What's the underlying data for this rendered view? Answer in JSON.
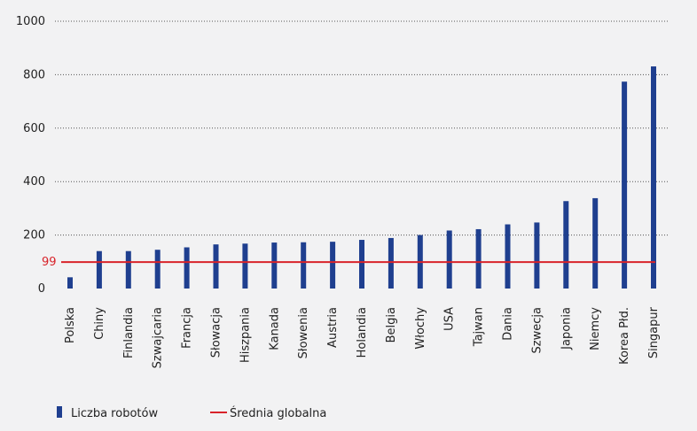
{
  "colors": {
    "background": "#f2f2f3",
    "bar": "#1f3f8f",
    "average_line": "#d8232a",
    "grid": "#555555",
    "axis_text": "#222222"
  },
  "chart_data": {
    "type": "bar",
    "title": "",
    "xlabel": "",
    "ylabel": "",
    "ylim": [
      0,
      1000
    ],
    "yticks": [
      0,
      200,
      400,
      600,
      800,
      1000
    ],
    "grid": true,
    "grid_style": "dotted",
    "categories": [
      "Polska",
      "Chiny",
      "Finlandia",
      "Szwajcaria",
      "Francja",
      "Słowacja",
      "Hiszpania",
      "Kanada",
      "Słowenia",
      "Austria",
      "Holandia",
      "Belgia",
      "Włochy",
      "USA",
      "Tajwan",
      "Dania",
      "Szwecja",
      "Japonia",
      "Niemcy",
      "Korea Płd.",
      "Singapur"
    ],
    "series": [
      {
        "name": "Liczba robotów",
        "values": [
          42,
          140,
          140,
          145,
          154,
          165,
          168,
          172,
          173,
          175,
          182,
          189,
          200,
          217,
          222,
          240,
          247,
          327,
          338,
          774,
          831
        ]
      }
    ],
    "average": {
      "name": "Średnia globalna",
      "value": 99,
      "label": "99"
    },
    "legend_position": "bottom-left"
  }
}
